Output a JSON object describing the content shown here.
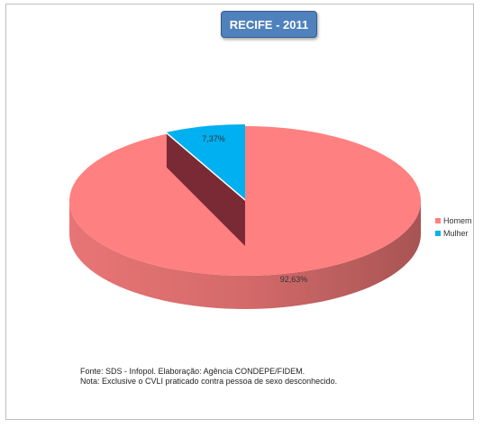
{
  "chart_data": {
    "type": "pie",
    "title": "RECIFE - 2011",
    "slices": [
      {
        "label": "Homem",
        "value": 92.63,
        "data_label": "92,63%",
        "color": "#ff8080"
      },
      {
        "label": "Mulher",
        "value": 7.37,
        "data_label": "7,37%",
        "color": "#00b0f0"
      }
    ],
    "legend_placement": "right",
    "three_d": true
  },
  "notes": {
    "source": "Fonte: SDS - Infopol.  Elaboração: Agência CONDEPE/FIDEM.",
    "note": "Nota: Exclusive  o CVLI praticado contra pessoa de sexo desconhecido."
  }
}
